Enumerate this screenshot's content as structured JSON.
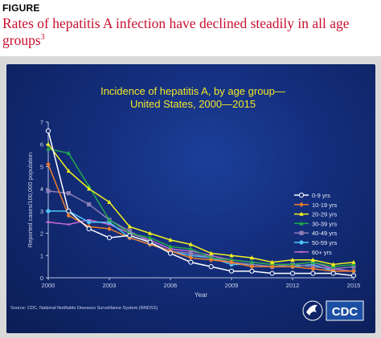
{
  "figure_label": "FIGURE",
  "figure_title": "Rates of hepatitis A infection have declined steadily in all age groups",
  "figure_title_ref": "3",
  "source": "Source: CDC, National Notifiable Diseases Surveillance System (NNDSS)",
  "logo_text": "CDC",
  "chart_data": {
    "type": "line",
    "title": "Incidence of hepatitis A, by age group—",
    "subtitle": "United States, 2000—2015",
    "xlabel": "Year",
    "ylabel": "Reported cases/100,000 population",
    "x": [
      2000,
      2001,
      2002,
      2003,
      2004,
      2005,
      2006,
      2007,
      2008,
      2009,
      2010,
      2011,
      2012,
      2013,
      2014,
      2015
    ],
    "xticks": [
      2000,
      2003,
      2006,
      2009,
      2012,
      2015
    ],
    "yticks": [
      0,
      1,
      2,
      3,
      4,
      5,
      6,
      7
    ],
    "xlim": [
      2000,
      2015
    ],
    "ylim": [
      0,
      7
    ],
    "grid": false,
    "legend_position": "right",
    "series": [
      {
        "name": "0-9 yrs",
        "color": "#ffffff",
        "marker": "open-circle",
        "values": [
          6.6,
          3.0,
          2.2,
          1.8,
          1.9,
          1.6,
          1.1,
          0.7,
          0.5,
          0.3,
          0.3,
          0.2,
          0.2,
          0.2,
          0.2,
          0.1
        ]
      },
      {
        "name": "10-19 yrs",
        "color": "#f07d2a",
        "marker": "diamond",
        "values": [
          5.1,
          2.8,
          2.3,
          2.2,
          1.8,
          1.5,
          1.2,
          0.9,
          0.8,
          0.7,
          0.5,
          0.5,
          0.5,
          0.4,
          0.3,
          0.3
        ]
      },
      {
        "name": "20-29 yrs",
        "color": "#f2f21e",
        "marker": "triangle",
        "values": [
          6.0,
          4.8,
          4.0,
          3.4,
          2.3,
          2.0,
          1.7,
          1.5,
          1.1,
          1.0,
          0.9,
          0.7,
          0.8,
          0.8,
          0.6,
          0.7
        ]
      },
      {
        "name": "30-39 yrs",
        "color": "#22aa4a",
        "marker": "triangle",
        "values": [
          5.8,
          5.6,
          4.1,
          2.6,
          2.0,
          1.8,
          1.4,
          1.3,
          0.9,
          0.8,
          0.7,
          0.6,
          0.6,
          0.7,
          0.5,
          0.6
        ]
      },
      {
        "name": "40-49 yrs",
        "color": "#8d7fb8",
        "marker": "square",
        "values": [
          3.9,
          3.8,
          3.3,
          2.6,
          2.1,
          1.6,
          1.2,
          1.1,
          0.9,
          0.7,
          0.6,
          0.5,
          0.6,
          0.5,
          0.4,
          0.5
        ]
      },
      {
        "name": "50-59 yrs",
        "color": "#4fc3f7",
        "marker": "circle",
        "values": [
          3.0,
          3.0,
          2.5,
          2.5,
          1.8,
          1.5,
          1.2,
          1.0,
          0.9,
          0.6,
          0.6,
          0.5,
          0.5,
          0.6,
          0.3,
          0.3
        ]
      },
      {
        "name": "60+ yrs",
        "color": "#c56bd0",
        "marker": "dash",
        "values": [
          2.5,
          2.4,
          2.6,
          2.4,
          2.0,
          1.7,
          1.3,
          1.2,
          1.0,
          0.8,
          0.7,
          0.6,
          0.6,
          0.7,
          0.4,
          0.3
        ]
      }
    ]
  }
}
